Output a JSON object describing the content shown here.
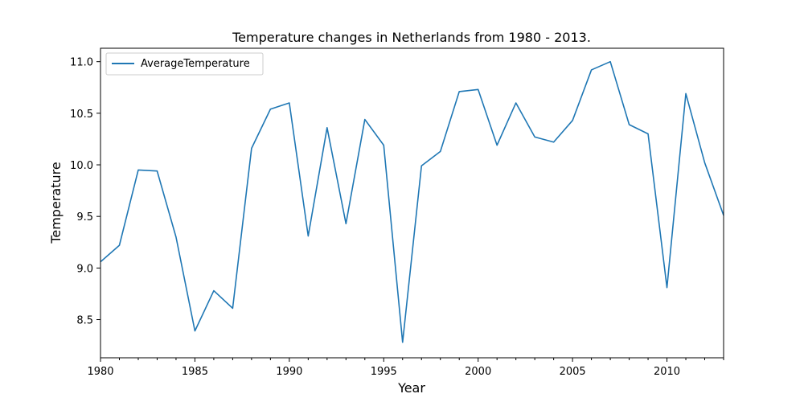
{
  "chart_data": {
    "type": "line",
    "title": "Temperature changes in Netherlands from 1980 - 2013.",
    "xlabel": "Year",
    "ylabel": "Temperature",
    "xlim": [
      1980,
      2013
    ],
    "ylim": [
      8.13,
      11.13
    ],
    "xticks": [
      1980,
      1985,
      1990,
      1995,
      2000,
      2005,
      2010
    ],
    "xtick_labels": [
      "1980",
      "1985",
      "1990",
      "1995",
      "2000",
      "2005",
      "2010"
    ],
    "yticks": [
      8.5,
      9.0,
      9.5,
      10.0,
      10.5,
      11.0
    ],
    "ytick_labels": [
      "8.5",
      "9.0",
      "9.5",
      "10.0",
      "10.5",
      "11.0"
    ],
    "grid": false,
    "legend_position": "top-left",
    "series": [
      {
        "name": "AverageTemperature",
        "color": "#1f77b4",
        "x": [
          1980,
          1981,
          1982,
          1983,
          1984,
          1985,
          1986,
          1987,
          1988,
          1989,
          1990,
          1991,
          1992,
          1993,
          1994,
          1995,
          1996,
          1997,
          1998,
          1999,
          2000,
          2001,
          2002,
          2003,
          2004,
          2005,
          2006,
          2007,
          2008,
          2009,
          2010,
          2011,
          2012,
          2013
        ],
        "values": [
          9.06,
          9.22,
          9.95,
          9.94,
          9.3,
          8.39,
          8.78,
          8.61,
          10.16,
          10.54,
          10.6,
          9.31,
          10.36,
          9.43,
          10.44,
          10.19,
          8.28,
          9.99,
          10.13,
          10.71,
          10.73,
          10.19,
          10.6,
          10.27,
          10.22,
          10.43,
          10.92,
          11.0,
          10.39,
          10.3,
          8.81,
          10.69,
          10.02,
          9.51
        ]
      }
    ]
  }
}
